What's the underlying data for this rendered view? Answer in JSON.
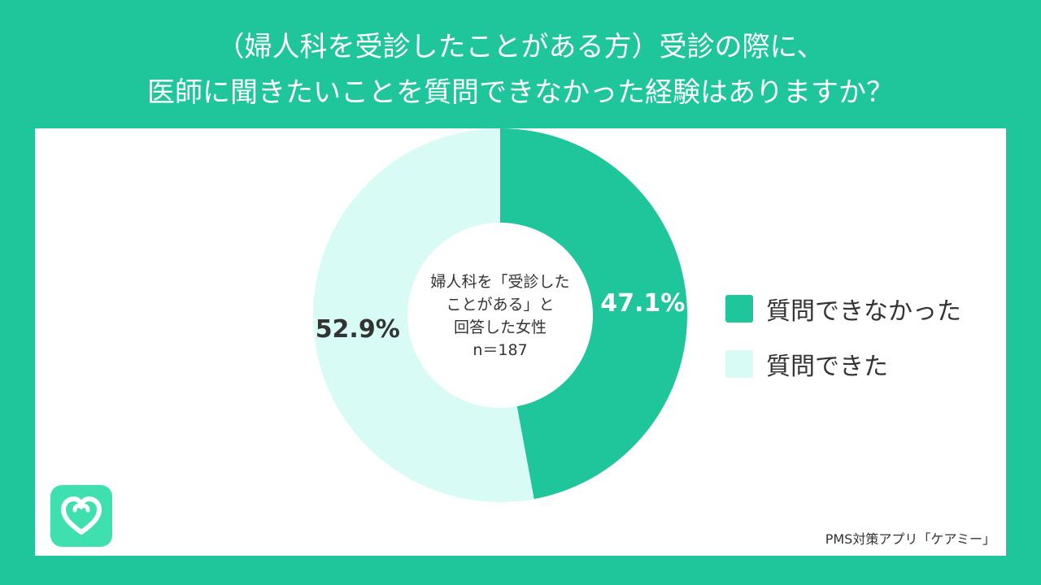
{
  "title_lines": [
    "（婦人科を受診したことがある方）受診の際に、",
    "医師に聞きたいことを質問できなかった経験はありますか？"
  ],
  "chart_data": {
    "type": "pie",
    "title": "（婦人科を受診したことがある方）受診の際に、医師に聞きたいことを質問できなかった経験はありますか？",
    "donut": true,
    "center_lines": [
      "婦人科を「受診した",
      "ことがある」と",
      "回答した女性",
      "n＝187"
    ],
    "slices": [
      {
        "label": "質問できなかった",
        "value": 47.1,
        "display": "47.1%",
        "color": "#1fc59b"
      },
      {
        "label": "質問できた",
        "value": 52.9,
        "display": "52.9%",
        "color": "#d8fbf5"
      }
    ],
    "legend": "right"
  },
  "colors": {
    "accent": "#1fc59b",
    "light": "#d8fbf5",
    "background": "#ffffff"
  },
  "source": "PMS対策アプリ「ケアミー」",
  "logo_icon": "heart-leaf-logo-icon"
}
